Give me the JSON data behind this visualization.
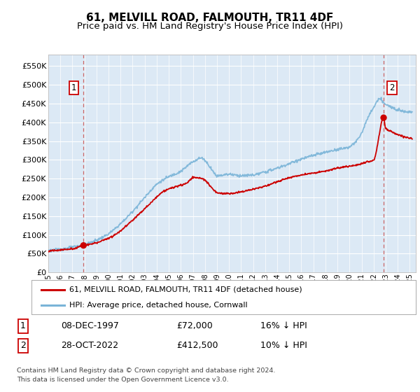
{
  "title": "61, MELVILL ROAD, FALMOUTH, TR11 4DF",
  "subtitle": "Price paid vs. HM Land Registry's House Price Index (HPI)",
  "ylim": [
    0,
    580000
  ],
  "yticks": [
    0,
    50000,
    100000,
    150000,
    200000,
    250000,
    300000,
    350000,
    400000,
    450000,
    500000,
    550000
  ],
  "ytick_labels": [
    "£0",
    "£50K",
    "£100K",
    "£150K",
    "£200K",
    "£250K",
    "£300K",
    "£350K",
    "£400K",
    "£450K",
    "£500K",
    "£550K"
  ],
  "xlim_start": 1995.0,
  "xlim_end": 2025.5,
  "plot_bg_color": "#dce9f5",
  "hpi_color": "#7ab4d8",
  "price_color": "#cc0000",
  "dashed_color": "#cc6666",
  "marker1_date": 1997.92,
  "marker1_price": 72000,
  "marker2_date": 2022.83,
  "marker2_price": 412500,
  "legend_label1": "61, MELVILL ROAD, FALMOUTH, TR11 4DF (detached house)",
  "legend_label2": "HPI: Average price, detached house, Cornwall",
  "table_row1": [
    "1",
    "08-DEC-1997",
    "£72,000",
    "16% ↓ HPI"
  ],
  "table_row2": [
    "2",
    "28-OCT-2022",
    "£412,500",
    "10% ↓ HPI"
  ],
  "footer": "Contains HM Land Registry data © Crown copyright and database right 2024.\nThis data is licensed under the Open Government Licence v3.0.",
  "title_fontsize": 11,
  "subtitle_fontsize": 9.5
}
